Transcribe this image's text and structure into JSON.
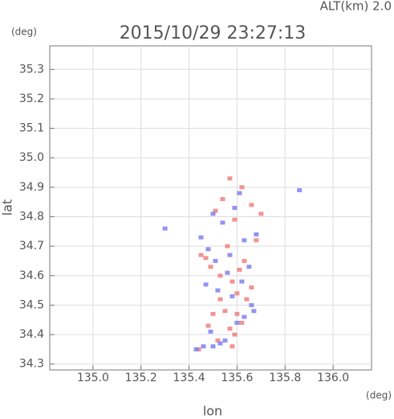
{
  "chart_data": {
    "type": "scatter",
    "title": "2015/10/29 23:27:13",
    "altitude_label": "ALT(km)  2.0",
    "y_unit": "(deg)",
    "x_unit": "(deg)",
    "xlabel": "lon",
    "ylabel": "lat",
    "xlim": [
      134.82,
      136.16
    ],
    "ylim": [
      34.28,
      35.38
    ],
    "xticks": [
      {
        "value": 135.0,
        "label": "135.0"
      },
      135.2,
      135.4,
      135.6,
      135.8,
      {
        "value": 136.0,
        "label": "136.0"
      }
    ],
    "yticks": [
      34.3,
      34.4,
      34.5,
      34.6,
      34.7,
      34.8,
      34.9,
      {
        "value": 35.0,
        "label": "35.0"
      },
      35.1,
      35.2,
      35.3
    ],
    "grid": true,
    "series": [
      {
        "color": "#f08080",
        "x": [
          135.57,
          135.59,
          135.62,
          135.6,
          135.55,
          135.5,
          135.48,
          135.52,
          135.64,
          135.66,
          135.58,
          135.53,
          135.61,
          135.63,
          135.47,
          135.45,
          135.56,
          135.68,
          135.59,
          135.51,
          135.54,
          135.62,
          135.57,
          135.49,
          135.66,
          135.6,
          135.53,
          135.58,
          135.7,
          135.44
        ],
        "y": [
          34.42,
          34.4,
          34.44,
          34.47,
          34.48,
          34.47,
          34.43,
          34.38,
          34.52,
          34.56,
          34.58,
          34.6,
          34.62,
          34.65,
          34.66,
          34.67,
          34.7,
          34.72,
          34.79,
          34.82,
          34.86,
          34.9,
          34.93,
          34.63,
          34.84,
          34.54,
          34.52,
          34.36,
          34.81,
          34.35
        ]
      },
      {
        "color": "#8080f0",
        "x": [
          135.43,
          135.46,
          135.5,
          135.53,
          135.55,
          135.49,
          135.6,
          135.63,
          135.67,
          135.58,
          135.52,
          135.47,
          135.62,
          135.56,
          135.65,
          135.51,
          135.48,
          135.57,
          135.63,
          135.68,
          135.54,
          135.45,
          135.86,
          135.3,
          135.59,
          135.61,
          135.5,
          135.66
        ],
        "y": [
          34.35,
          34.36,
          34.36,
          34.37,
          34.38,
          34.41,
          34.44,
          34.46,
          34.48,
          34.53,
          34.55,
          34.57,
          34.58,
          34.61,
          34.63,
          34.65,
          34.69,
          34.67,
          34.72,
          34.74,
          34.78,
          34.73,
          34.89,
          34.76,
          34.83,
          34.88,
          34.81,
          34.5
        ]
      }
    ]
  }
}
